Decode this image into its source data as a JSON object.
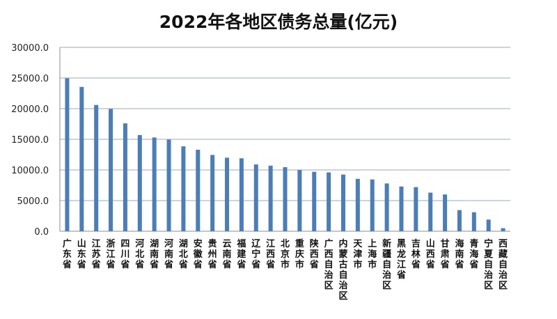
{
  "chart_data": {
    "type": "bar",
    "title": "2022年各地区债务总量(亿元)",
    "xlabel": "",
    "ylabel": "",
    "ylim": [
      0,
      30000
    ],
    "yticks": [
      "0.0",
      "5000.0",
      "10000.0",
      "15000.0",
      "20000.0",
      "25000.0",
      "30000.0"
    ],
    "grid": true,
    "bar_color": "#4a7ebb",
    "categories": [
      "广东省",
      "山东省",
      "江苏省",
      "浙江省",
      "四川省",
      "河北省",
      "湖南省",
      "河南省",
      "湖北省",
      "安徽省",
      "贵州省",
      "云南省",
      "福建省",
      "辽宁省",
      "江西省",
      "北京市",
      "重庆市",
      "陕西省",
      "广西自治区",
      "内蒙古自治区",
      "天津市",
      "上海市",
      "新疆自治区",
      "黑龙江省",
      "吉林省",
      "山西省",
      "甘肃省",
      "海南省",
      "青海省",
      "宁夏自治区",
      "西藏自治区"
    ],
    "values": [
      24950,
      23550,
      20600,
      19950,
      17600,
      15700,
      15300,
      14950,
      13850,
      13300,
      12450,
      12000,
      11900,
      10900,
      10700,
      10450,
      10000,
      9700,
      9600,
      9250,
      8550,
      8450,
      7800,
      7300,
      7200,
      6300,
      6000,
      3450,
      3100,
      1900,
      500
    ]
  }
}
